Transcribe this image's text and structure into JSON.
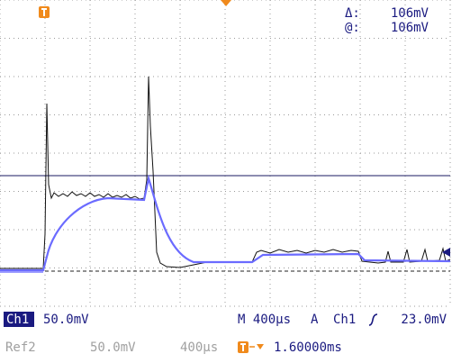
{
  "readout": {
    "delta_label": "Δ:",
    "delta_value": "106mV",
    "at_label": "@:",
    "at_value": "106mV"
  },
  "status": {
    "channel": "Ch1",
    "volts_per_div": "50.0mV",
    "timebase": "M 400µs",
    "trigger_mode": "A",
    "trigger_source": "Ch1",
    "trigger_level": "23.0mV"
  },
  "reference": {
    "name": "Ref2",
    "volts_per_div": "50.0mV",
    "timebase": "400µs",
    "trigger_position": "1.60000ms"
  }
}
